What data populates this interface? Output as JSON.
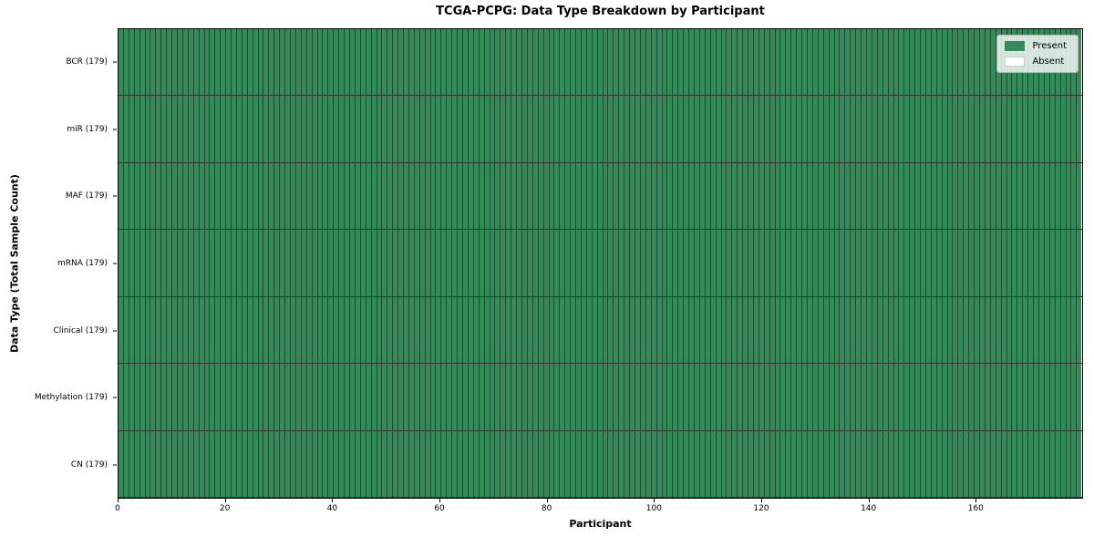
{
  "chart_data": {
    "type": "heatmap",
    "title": "TCGA-PCPG: Data Type Breakdown by Participant",
    "xlabel": "Participant",
    "ylabel": "Data Type (Total Sample Count)",
    "n_participants": 179,
    "xlim": [
      0,
      180
    ],
    "x_ticks": [
      0,
      20,
      40,
      60,
      80,
      100,
      120,
      140,
      160
    ],
    "rows": [
      {
        "label": "BCR (179)",
        "data_type": "BCR",
        "total_samples": 179,
        "present_count": 179
      },
      {
        "label": "miR (179)",
        "data_type": "miR",
        "total_samples": 179,
        "present_count": 179
      },
      {
        "label": "MAF (179)",
        "data_type": "MAF",
        "total_samples": 179,
        "present_count": 179
      },
      {
        "label": "mRNA (179)",
        "data_type": "mRNA",
        "total_samples": 179,
        "present_count": 179
      },
      {
        "label": "Clinical (179)",
        "data_type": "Clinical",
        "total_samples": 179,
        "present_count": 179
      },
      {
        "label": "Methylation (179)",
        "data_type": "Methylation",
        "total_samples": 179,
        "present_count": 179
      },
      {
        "label": "CN (179)",
        "data_type": "CN",
        "total_samples": 179,
        "present_count": 179
      }
    ],
    "legend": {
      "position": "upper right",
      "entries": [
        {
          "label": "Present",
          "color": "#358a5a"
        },
        {
          "label": "Absent",
          "color": "#ffffff"
        }
      ]
    },
    "colors": {
      "present": "#358a5a",
      "absent": "#ffffff",
      "cell_edge": "rgba(0,0,0,0.45)",
      "row_separator": "rgba(0,0,0,0.8)",
      "plot_border": "#000000"
    },
    "grid": false
  }
}
